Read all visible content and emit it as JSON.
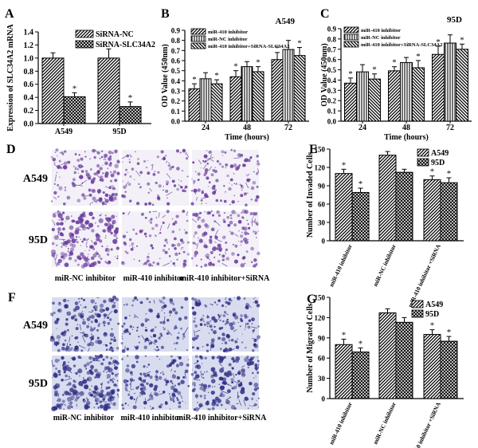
{
  "figure": {
    "panel_letters": [
      "A",
      "B",
      "C",
      "D",
      "E",
      "F",
      "G"
    ]
  },
  "chart_data": [
    {
      "panel": "A",
      "type": "bar",
      "ylabel": "Expression of SLC34A2 mRNA",
      "xlabel": "",
      "categories": [
        "A549",
        "95D"
      ],
      "series": [
        {
          "name": "SiRNA-NC",
          "values": [
            1.0,
            1.0
          ],
          "errors": [
            0.08,
            0.14
          ],
          "pattern": "diag-right"
        },
        {
          "name": "SiRNA-SLC34A2",
          "values": [
            0.41,
            0.26
          ],
          "errors": [
            0.06,
            0.07
          ],
          "pattern": "crosshatch",
          "sig": [
            "*",
            "*"
          ]
        }
      ],
      "ylim": [
        0,
        1.4
      ],
      "yticks": [
        0.0,
        0.2,
        0.4,
        0.6,
        0.8,
        1.0,
        1.2,
        1.4
      ]
    },
    {
      "panel": "B",
      "type": "bar",
      "title": "A549",
      "ylabel": "OD Value (450nm)",
      "xlabel": "Time (hours)",
      "categories": [
        "24",
        "48",
        "72"
      ],
      "series": [
        {
          "name": "miR-410 inhibitor",
          "values": [
            0.32,
            0.44,
            0.61
          ],
          "errors": [
            0.05,
            0.06,
            0.07
          ],
          "pattern": "diag-right",
          "sig": [
            "*",
            "*",
            "*"
          ]
        },
        {
          "name": "miR-NC inhibitor",
          "values": [
            0.42,
            0.54,
            0.71
          ],
          "errors": [
            0.06,
            0.05,
            0.09
          ],
          "pattern": "vertical"
        },
        {
          "name": "miR-410 inhibitor+SiRNA-SLC34A2",
          "values": [
            0.37,
            0.49,
            0.65
          ],
          "errors": [
            0.04,
            0.05,
            0.08
          ],
          "pattern": "diag-left",
          "sig": [
            "*",
            "*",
            "*"
          ]
        }
      ],
      "ylim": [
        0,
        0.9
      ],
      "yticks": [
        0.0,
        0.1,
        0.2,
        0.3,
        0.4,
        0.5,
        0.6,
        0.7,
        0.8,
        0.9
      ]
    },
    {
      "panel": "C",
      "type": "bar",
      "title": "95D",
      "ylabel": "OD Value (450nm)",
      "xlabel": "Time (hours)",
      "categories": [
        "24",
        "48",
        "72"
      ],
      "series": [
        {
          "name": "miR-410 inhibitor",
          "values": [
            0.37,
            0.49,
            0.65
          ],
          "errors": [
            0.05,
            0.04,
            0.08
          ],
          "pattern": "diag-right",
          "sig": [
            "*",
            "*",
            "*"
          ]
        },
        {
          "name": "miR-NC inhibitor",
          "values": [
            0.48,
            0.57,
            0.76
          ],
          "errors": [
            0.07,
            0.05,
            0.08
          ],
          "pattern": "vertical"
        },
        {
          "name": "miR-410 inhibitor+SiRNA-SLC34A2",
          "values": [
            0.41,
            0.52,
            0.7
          ],
          "errors": [
            0.05,
            0.07,
            0.05
          ],
          "pattern": "diag-left",
          "sig": [
            "*",
            "*",
            "*"
          ]
        }
      ],
      "ylim": [
        0,
        0.9
      ],
      "yticks": [
        0.0,
        0.1,
        0.2,
        0.3,
        0.4,
        0.5,
        0.6,
        0.7,
        0.8,
        0.9
      ]
    },
    {
      "panel": "E",
      "type": "bar",
      "ylabel": "Number of Invaded Cells",
      "xlabel": "",
      "categories": [
        "miR-410 inhibitor",
        "miR-NC inhibitor",
        "miR-410 inhibitor +SiRNA"
      ],
      "series": [
        {
          "name": "A549",
          "values": [
            110,
            140,
            100
          ],
          "errors": [
            7,
            6,
            6
          ],
          "pattern": "diag-right",
          "sig": [
            "*",
            "",
            "*"
          ]
        },
        {
          "name": "95D",
          "values": [
            79,
            112,
            95
          ],
          "errors": [
            7,
            5,
            8
          ],
          "pattern": "crosshatch",
          "sig": [
            "*",
            "",
            "*"
          ]
        }
      ],
      "ylim": [
        0,
        150
      ],
      "yticks": [
        0,
        30,
        60,
        90,
        120,
        150
      ]
    },
    {
      "panel": "G",
      "type": "bar",
      "ylabel": "Number of Migrated Cells",
      "xlabel": "",
      "categories": [
        "miR-410 inhibitor",
        "miR-NC inhibitor",
        "miR-410 inhibitor +SiRNA"
      ],
      "series": [
        {
          "name": "A549",
          "values": [
            80,
            127,
            95
          ],
          "errors": [
            8,
            6,
            7
          ],
          "pattern": "diag-right",
          "sig": [
            "*",
            "",
            "*"
          ]
        },
        {
          "name": "95D",
          "values": [
            69,
            113,
            85
          ],
          "errors": [
            6,
            7,
            7
          ],
          "pattern": "crosshatch",
          "sig": [
            "*",
            "",
            "*"
          ]
        }
      ],
      "ylim": [
        0,
        150
      ],
      "yticks": [
        0,
        30,
        60,
        90,
        120,
        150
      ]
    }
  ],
  "micrographs": [
    {
      "panel": "D",
      "row_labels": [
        "A549",
        "95D"
      ],
      "col_labels": [
        "miR-NC inhibitor",
        "miR-410 inhibitor",
        "miR-410 inhibitor+SiRNA"
      ],
      "background": "#f3f0f7",
      "stain": "#6a3e9e",
      "density": [
        [
          0.55,
          0.25,
          0.4
        ],
        [
          0.75,
          0.3,
          0.55
        ]
      ]
    },
    {
      "panel": "F",
      "row_labels": [
        "A549",
        "95D"
      ],
      "col_labels": [
        "miR-NC inhibitor",
        "miR-410 inhibitor",
        "miR-410 inhibitor+SiRNA"
      ],
      "background": "#d8dcee",
      "stain": "#2e2f86",
      "density": [
        [
          0.6,
          0.35,
          0.5
        ],
        [
          0.85,
          0.55,
          0.7
        ]
      ]
    }
  ]
}
